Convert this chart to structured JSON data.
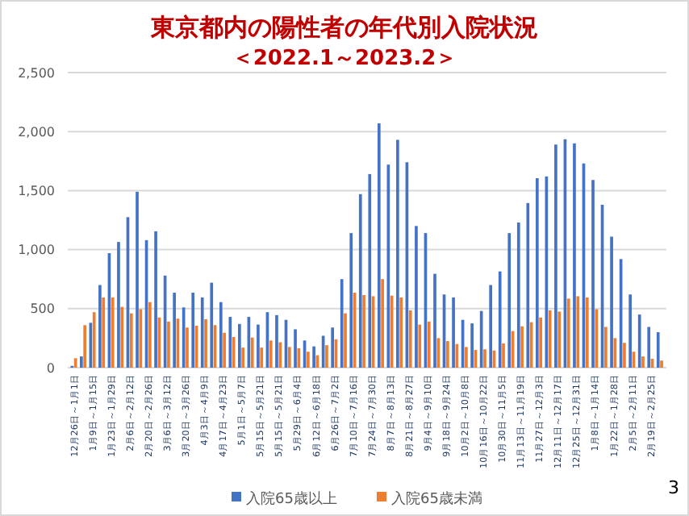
{
  "chart_data": {
    "type": "bar",
    "title": "東京都内の陽性者の年代別入院状況",
    "subtitle": "＜2022.1～2023.2＞",
    "categories": [
      "12月26日～1月1日",
      null,
      "1月9日～1月15日",
      null,
      "1月23日～1月29日",
      null,
      "2月6日～2月12日",
      null,
      "2月20日～2月26日",
      null,
      "3月6日～3月12日",
      null,
      "3月20日～3月26日",
      null,
      "4月3日～4月9日",
      null,
      "4月17日～4月23日",
      null,
      "5月1日～5月7日",
      null,
      "5月15日～5月21日",
      null,
      "5月15日～5月21日",
      null,
      "5月29日～6月4日",
      null,
      "6月12日～6月18日",
      null,
      "6月26日～7月2日",
      null,
      "7月10日～7月16日",
      null,
      "7月24日～7月30日",
      null,
      "8月7日～8月13日",
      null,
      "8月21日～8月27日",
      null,
      "9月4日～9月10日",
      null,
      "9月18日～9月24日",
      null,
      "10月2日～10月8日",
      null,
      "10月16日～10月22日",
      null,
      "10月30日～11月5日",
      null,
      "11月13日～11月19日",
      null,
      "11月27日～12月3日",
      null,
      "12月11日～12月17日",
      null,
      "12月25日～12月31日",
      null,
      "1月8日～1月14日",
      null,
      "1月22日～1月28日",
      null,
      "2月5日～2月11日",
      null,
      "2月19日～2月25日",
      null
    ],
    "series": [
      {
        "name": "入院65歳以上",
        "color": "#4472c4",
        "values": [
          15,
          95,
          380,
          700,
          970,
          1065,
          1275,
          1490,
          1080,
          1155,
          780,
          635,
          510,
          635,
          595,
          720,
          555,
          430,
          370,
          430,
          365,
          470,
          445,
          405,
          325,
          230,
          180,
          270,
          340,
          750,
          1140,
          1470,
          1640,
          2070,
          1720,
          1930,
          1740,
          1200,
          1140,
          795,
          620,
          595,
          405,
          375,
          480,
          700,
          815,
          1140,
          1230,
          1395,
          1605,
          1620,
          1890,
          1935,
          1900,
          1730,
          1590,
          1380,
          1110,
          920,
          620,
          450,
          345,
          300
        ]
      },
      {
        "name": "入院65歳未満",
        "color": "#ed7d31",
        "values": [
          80,
          360,
          470,
          595,
          595,
          515,
          460,
          495,
          555,
          425,
          390,
          415,
          340,
          355,
          410,
          360,
          295,
          260,
          170,
          255,
          170,
          230,
          215,
          175,
          165,
          135,
          105,
          190,
          240,
          460,
          635,
          615,
          605,
          750,
          610,
          595,
          485,
          365,
          390,
          250,
          225,
          200,
          175,
          150,
          155,
          145,
          205,
          310,
          350,
          385,
          425,
          485,
          475,
          585,
          605,
          595,
          495,
          345,
          250,
          210,
          135,
          95,
          75,
          60
        ]
      }
    ],
    "ylim": [
      0,
      2500
    ],
    "yticks": [
      {
        "value": 0,
        "label": "0"
      },
      {
        "value": 500,
        "label": "500"
      },
      {
        "value": 1000,
        "label": "1,000"
      },
      {
        "value": 1500,
        "label": "1,500"
      },
      {
        "value": 2000,
        "label": "2,000"
      },
      {
        "value": 2500,
        "label": "2,500"
      }
    ],
    "grid": "y",
    "legend": "bottom",
    "annotations": [
      "3"
    ]
  }
}
